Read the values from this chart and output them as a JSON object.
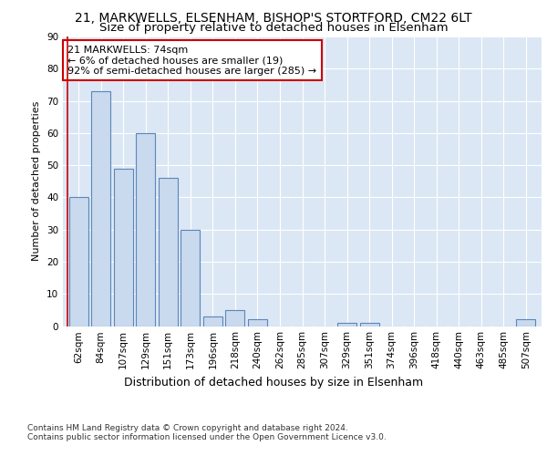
{
  "title1": "21, MARKWELLS, ELSENHAM, BISHOP'S STORTFORD, CM22 6LT",
  "title2": "Size of property relative to detached houses in Elsenham",
  "xlabel": "Distribution of detached houses by size in Elsenham",
  "ylabel": "Number of detached properties",
  "bar_labels": [
    "62sqm",
    "84sqm",
    "107sqm",
    "129sqm",
    "151sqm",
    "173sqm",
    "196sqm",
    "218sqm",
    "240sqm",
    "262sqm",
    "285sqm",
    "307sqm",
    "329sqm",
    "351sqm",
    "374sqm",
    "396sqm",
    "418sqm",
    "440sqm",
    "463sqm",
    "485sqm",
    "507sqm"
  ],
  "bar_values": [
    40,
    73,
    49,
    60,
    46,
    30,
    3,
    5,
    2,
    0,
    0,
    0,
    1,
    1,
    0,
    0,
    0,
    0,
    0,
    0,
    2
  ],
  "bar_color": "#c9d9ee",
  "bar_edge_color": "#5b87b8",
  "annotation_box_text": "21 MARKWELLS: 74sqm\n← 6% of detached houses are smaller (19)\n92% of semi-detached houses are larger (285) →",
  "annotation_box_color": "#ffffff",
  "annotation_box_edge_color": "#cc0000",
  "vline_color": "#cc0000",
  "ylim": [
    0,
    90
  ],
  "yticks": [
    0,
    10,
    20,
    30,
    40,
    50,
    60,
    70,
    80,
    90
  ],
  "plot_bg_color": "#dce7f5",
  "footer_text": "Contains HM Land Registry data © Crown copyright and database right 2024.\nContains public sector information licensed under the Open Government Licence v3.0.",
  "title1_fontsize": 10,
  "title2_fontsize": 9.5,
  "xlabel_fontsize": 9,
  "ylabel_fontsize": 8,
  "tick_fontsize": 7.5,
  "annotation_fontsize": 8,
  "footer_fontsize": 6.5
}
